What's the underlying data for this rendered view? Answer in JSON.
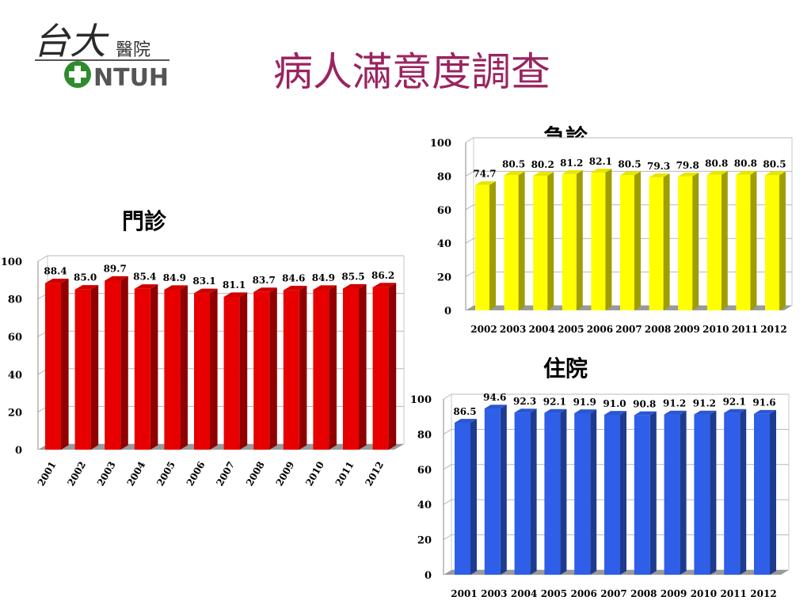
{
  "title": "病人滿意度調查",
  "logo": {
    "cn_a": "台大",
    "cn_b": "醫院",
    "en": "NTUH"
  },
  "colors": {
    "title": "#9a2460",
    "outpatient": "#e80000",
    "emergency": "#ffff00",
    "inpatient": "#2f5fe8"
  },
  "chart_data": [
    {
      "id": "outpatient",
      "type": "bar",
      "title": "門診",
      "categories": [
        "2001",
        "2002",
        "2003",
        "2004",
        "2005",
        "2006",
        "2007",
        "2008",
        "2009",
        "2010",
        "2011",
        "2012"
      ],
      "values": [
        88.4,
        85.0,
        89.7,
        85.4,
        84.9,
        83.1,
        81.1,
        83.7,
        84.6,
        84.9,
        85.5,
        86.2
      ],
      "value_labels": [
        "88.4",
        "85.0",
        "89.7",
        "85.4",
        "84.9",
        "83.1",
        "81.1",
        "83.7",
        "84.6",
        "84.9",
        "85.5",
        "86.2"
      ],
      "ylim": [
        0,
        100
      ],
      "yticks": [
        "0",
        "20",
        "40",
        "60",
        "80",
        "100"
      ],
      "grid": true,
      "color": "#e80000",
      "xlabel": "",
      "ylabel": ""
    },
    {
      "id": "emergency",
      "type": "bar",
      "title": "急診",
      "categories": [
        "2002",
        "2003",
        "2004",
        "2005",
        "2006",
        "2007",
        "2008",
        "2009",
        "2010",
        "2011",
        "2012"
      ],
      "values": [
        74.7,
        80.5,
        80.2,
        81.2,
        82.1,
        80.5,
        79.3,
        79.8,
        80.8,
        80.8,
        80.5
      ],
      "value_labels": [
        "74.7",
        "80.5",
        "80.2",
        "81.2",
        "82.1",
        "80.5",
        "79.3",
        "79.8",
        "80.8",
        "80.8",
        "80.5"
      ],
      "ylim": [
        0,
        100
      ],
      "yticks": [
        "0",
        "20",
        "40",
        "60",
        "80",
        "100"
      ],
      "grid": true,
      "color": "#ffff00",
      "xlabel": "",
      "ylabel": ""
    },
    {
      "id": "inpatient",
      "type": "bar",
      "title": "住院",
      "categories": [
        "2001",
        "2003",
        "2004",
        "2005",
        "2006",
        "2007",
        "2008",
        "2009",
        "2010",
        "2011",
        "2012"
      ],
      "values": [
        86.5,
        94.6,
        92.3,
        92.1,
        91.9,
        91.0,
        90.8,
        91.2,
        91.2,
        92.1,
        91.6
      ],
      "value_labels": [
        "86.5",
        "94.6",
        "92.3",
        "92.1",
        "91.9",
        "91.0",
        "90.8",
        "91.2",
        "91.2",
        "92.1",
        "91.6"
      ],
      "ylim": [
        0,
        100
      ],
      "yticks": [
        "0",
        "20",
        "40",
        "60",
        "80",
        "100"
      ],
      "grid": true,
      "color": "#2f5fe8",
      "xlabel": "",
      "ylabel": ""
    }
  ]
}
